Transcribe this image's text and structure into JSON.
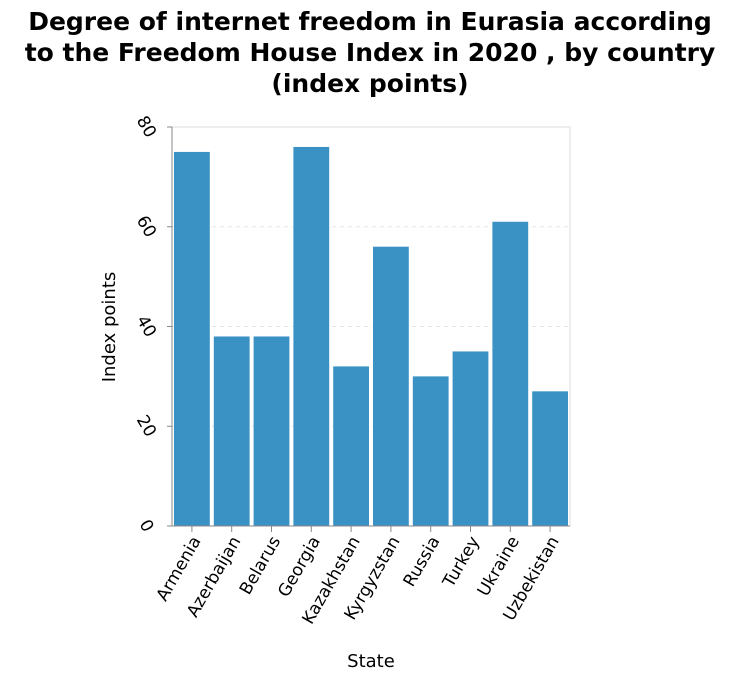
{
  "title_lines": [
    "Degree of internet freedom in Eurasia according",
    "to the Freedom House Index in 2020 , by country",
    "(index points)"
  ],
  "chart_data": {
    "type": "bar",
    "title": "Degree of internet freedom in Eurasia according to the Freedom House Index in 2020 , by country (index points)",
    "xlabel": "State",
    "ylabel": "Index points",
    "categories": [
      "Armenia",
      "Azerbaijan",
      "Belarus",
      "Georgia",
      "Kazakhstan",
      "Kyrgyzstan",
      "Russia",
      "Turkey",
      "Ukraine",
      "Uzbekistan"
    ],
    "values": [
      75,
      38,
      38,
      76,
      32,
      56,
      30,
      35,
      61,
      27
    ],
    "ylim": [
      0,
      80
    ],
    "yticks": [
      0,
      20,
      40,
      60,
      80
    ],
    "grid": true,
    "bar_color": "#3a92c4"
  }
}
